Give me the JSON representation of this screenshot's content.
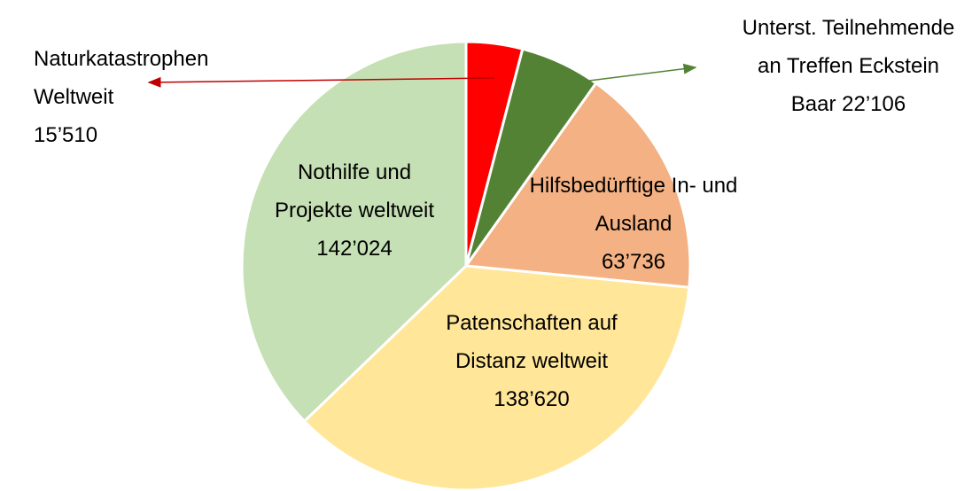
{
  "chart_data": {
    "type": "pie",
    "categories": [
      "Naturkatastrophen Weltweit",
      "Unterst. Teilnehmende an Treffen Eckstein Baar",
      "Hilfsbedürftige In- und Ausland",
      "Patenschaften auf Distanz weltweit",
      "Nothilfe und Projekte weltweit"
    ],
    "values": [
      15510,
      22106,
      63736,
      138620,
      142024
    ],
    "value_labels": [
      "15’510",
      "22’106",
      "63’736",
      "138’620",
      "142’024"
    ],
    "colors": [
      "#ff0000",
      "#548235",
      "#f4b183",
      "#ffe699",
      "#c5e0b4"
    ]
  }
}
